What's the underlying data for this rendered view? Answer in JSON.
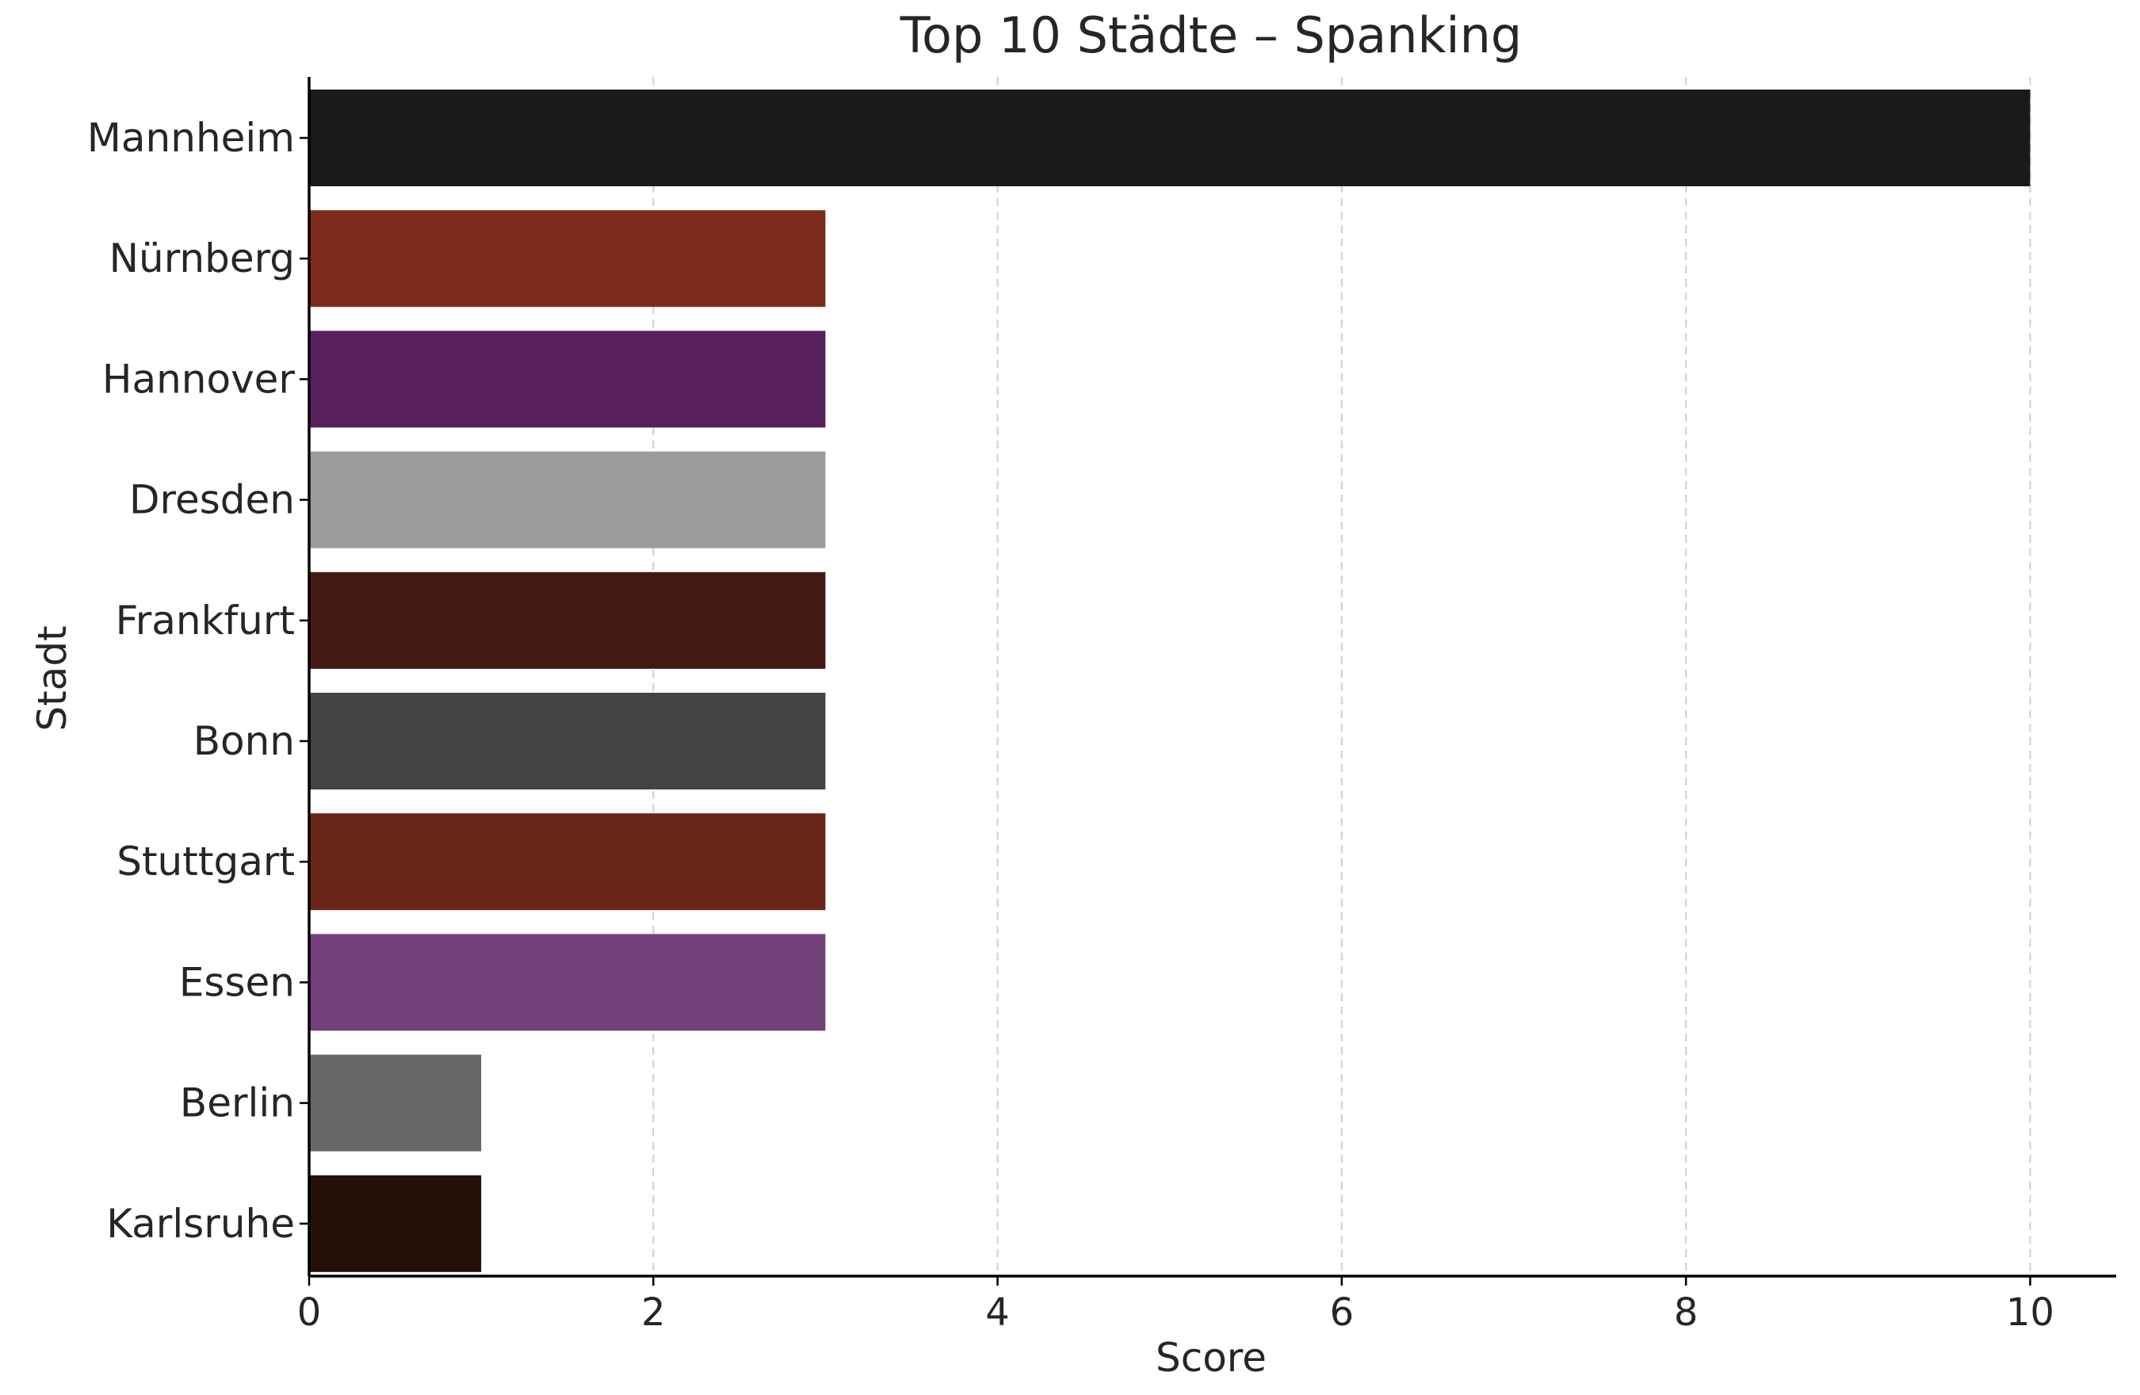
{
  "chart_data": {
    "type": "bar",
    "orientation": "horizontal",
    "title": "Top 10 Städte – Spanking",
    "xlabel": "Score",
    "ylabel": "Stadt",
    "categories": [
      "Mannheim",
      "Nürnberg",
      "Hannover",
      "Dresden",
      "Frankfurt",
      "Bonn",
      "Stuttgart",
      "Essen",
      "Berlin",
      "Karlsruhe"
    ],
    "values": [
      10,
      3,
      3,
      3,
      3,
      3,
      3,
      3,
      1,
      1
    ],
    "colors": [
      "#1a1a1a",
      "#7d2b1e",
      "#57205d",
      "#9b9b9b",
      "#431a12",
      "#434343",
      "#692518",
      "#72417a",
      "#686868",
      "#241009"
    ],
    "xlim": [
      0,
      10.5
    ],
    "xticks": [
      "0",
      "2",
      "4",
      "6",
      "8",
      "10"
    ],
    "grid": "x-dashed",
    "legend": "none"
  }
}
